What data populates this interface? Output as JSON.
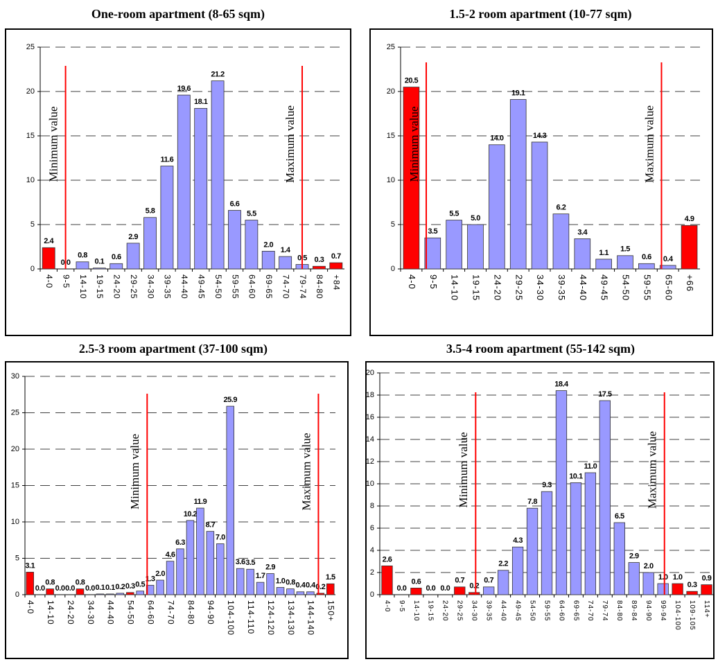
{
  "chart_data": [
    {
      "type": "bar",
      "title": "One-room apartment (8-65 sqm)",
      "categories": [
        "4-0",
        "9-5",
        "14-10",
        "19-15",
        "24-20",
        "29-25",
        "34-30",
        "39-35",
        "44-40",
        "49-45",
        "54-50",
        "59-55",
        "64-60",
        "69-65",
        "74-70",
        "79-74",
        "84-80",
        "+84"
      ],
      "values": [
        2.4,
        0.0,
        0.8,
        0.1,
        0.6,
        2.9,
        5.8,
        11.6,
        19.6,
        18.1,
        21.2,
        6.6,
        5.5,
        2.0,
        1.4,
        0.5,
        0.3,
        0.7
      ],
      "value_labels": [
        "2.4",
        "0.0",
        "0.8",
        "0.1",
        "0.6",
        "2.9",
        "5.8",
        "11.6",
        "19.6",
        "18.1",
        "21.2",
        "6.6",
        "5.5",
        "2.0",
        "1.4",
        "0.5",
        "0.3",
        "0.7"
      ],
      "colors": [
        "#ff0000",
        "#ff0000",
        "#9999ff",
        "#9999ff",
        "#9999ff",
        "#9999ff",
        "#9999ff",
        "#9999ff",
        "#9999ff",
        "#9999ff",
        "#9999ff",
        "#9999ff",
        "#9999ff",
        "#9999ff",
        "#9999ff",
        "#9999ff",
        "#ff0000",
        "#ff0000"
      ],
      "ylim": [
        0,
        25
      ],
      "yticks": [
        0,
        5,
        10,
        15,
        20,
        25
      ],
      "grid": true,
      "annotations": [
        "Minimum value",
        "Maximum value"
      ],
      "annotation_color": "#ff0000"
    },
    {
      "type": "bar",
      "title": "1.5-2 room apartment (10-77 sqm)",
      "categories": [
        "4-0",
        "9-5",
        "14-10",
        "19-15",
        "24-20",
        "29-25",
        "34-30",
        "39-35",
        "44-40",
        "49-45",
        "54-50",
        "59-55",
        "65-60",
        "+66"
      ],
      "values": [
        20.5,
        3.5,
        5.5,
        5.0,
        14.0,
        19.1,
        14.3,
        6.2,
        3.4,
        1.1,
        1.5,
        0.6,
        0.4,
        4.9
      ],
      "value_labels": [
        "20.5",
        "3.5",
        "5.5",
        "5.0",
        "14.0",
        "19.1",
        "14.3",
        "6.2",
        "3.4",
        "1.1",
        "1.5",
        "0.6",
        "0.4",
        "4.9"
      ],
      "colors": [
        "#ff0000",
        "#9999ff",
        "#9999ff",
        "#9999ff",
        "#9999ff",
        "#9999ff",
        "#9999ff",
        "#9999ff",
        "#9999ff",
        "#9999ff",
        "#9999ff",
        "#9999ff",
        "#9999ff",
        "#ff0000"
      ],
      "ylim": [
        0,
        25
      ],
      "yticks": [
        0,
        5,
        10,
        15,
        20,
        25
      ],
      "grid": true,
      "annotations": [
        "Minimum value",
        "Maximum value"
      ],
      "annotation_color": "#ff0000"
    },
    {
      "type": "bar",
      "title": "2.5-3 room apartment (37-100 sqm)",
      "categories": [
        "4-0",
        null,
        "14-10",
        null,
        "24-20",
        null,
        "34-30",
        null,
        "44-40",
        null,
        "54-50",
        null,
        "64-60",
        null,
        "74-70",
        null,
        "84-80",
        null,
        "94-90",
        null,
        "104-100",
        null,
        "114-110",
        null,
        "124-120",
        null,
        "134-130",
        null,
        "144-140",
        null,
        "150+"
      ],
      "values": [
        3.1,
        0.0,
        0.8,
        0.0,
        0.0,
        0.8,
        0.0,
        0.1,
        0.1,
        0.2,
        0.3,
        0.5,
        1.3,
        2.0,
        4.6,
        6.3,
        10.2,
        11.9,
        8.7,
        7.0,
        25.9,
        3.6,
        3.5,
        1.7,
        2.9,
        1.0,
        0.8,
        0.4,
        0.4,
        0.2,
        1.5
      ],
      "value_labels": [
        "3.1",
        "0.0",
        "0.8",
        "0.0",
        "0.0",
        "0.8",
        "0.0",
        "0.1",
        "0.1",
        "0.2",
        "0.3",
        "0.5",
        "1.3",
        "2.0",
        "4.6",
        "6.3",
        "10.2",
        "11.9",
        "8.7",
        "7.0",
        "25.9",
        "3.6",
        "3.5",
        "1.7",
        "2.9",
        "1.0",
        "0.8",
        "0.4",
        "0.4",
        "0.2",
        "1.5"
      ],
      "colors": [
        "#ff0000",
        "#9999ff",
        "#ff0000",
        "#9999ff",
        "#9999ff",
        "#ff0000",
        "#9999ff",
        "#9999ff",
        "#9999ff",
        "#9999ff",
        "#ff0000",
        "#9999ff",
        "#9999ff",
        "#9999ff",
        "#9999ff",
        "#9999ff",
        "#9999ff",
        "#9999ff",
        "#9999ff",
        "#9999ff",
        "#9999ff",
        "#9999ff",
        "#9999ff",
        "#9999ff",
        "#9999ff",
        "#9999ff",
        "#9999ff",
        "#9999ff",
        "#9999ff",
        "#ff0000",
        "#ff0000"
      ],
      "ylim": [
        0,
        30
      ],
      "yticks": [
        0,
        5,
        10,
        15,
        20,
        25,
        30
      ],
      "grid": true,
      "annotations": [
        "Minimum value",
        "Maximum value"
      ],
      "annotation_color": "#ff0000"
    },
    {
      "type": "bar",
      "title": "3.5-4 room apartment (55-142 sqm)",
      "categories": [
        "4-0",
        "9-5",
        "14-10",
        "19-15",
        "24-20",
        "29-25",
        "34-30",
        "39-35",
        "44-40",
        "49-45",
        "54-50",
        "59-55",
        "64-60",
        "69-65",
        "74-70",
        "79-74",
        "84-80",
        "89-84",
        "94-90",
        "99-94",
        "104-100",
        "109-105",
        "114+"
      ],
      "values": [
        2.6,
        0.0,
        0.6,
        0.0,
        0.0,
        0.7,
        0.2,
        0.7,
        2.2,
        4.3,
        7.8,
        9.3,
        18.4,
        10.1,
        11.0,
        17.5,
        6.5,
        2.9,
        2.0,
        1.0,
        1.0,
        0.3,
        0.9
      ],
      "value_labels": [
        "2.6",
        "0.0",
        "0.6",
        "0.0",
        "0.0",
        "0.7",
        "0.2",
        "0.7",
        "2.2",
        "4.3",
        "7.8",
        "9.3",
        "18.4",
        "10.1",
        "11.0",
        "17.5",
        "6.5",
        "2.9",
        "2.0",
        "1.0",
        "1.0",
        "0.3",
        "0.9"
      ],
      "colors": [
        "#ff0000",
        "#9999ff",
        "#ff0000",
        "#9999ff",
        "#9999ff",
        "#ff0000",
        "#ff0000",
        "#9999ff",
        "#9999ff",
        "#9999ff",
        "#9999ff",
        "#9999ff",
        "#9999ff",
        "#9999ff",
        "#9999ff",
        "#9999ff",
        "#9999ff",
        "#9999ff",
        "#9999ff",
        "#9999ff",
        "#ff0000",
        "#ff0000",
        "#ff0000"
      ],
      "ylim": [
        0,
        20
      ],
      "yticks": [
        0,
        2,
        4,
        6,
        8,
        10,
        12,
        14,
        16,
        18,
        20
      ],
      "grid": true,
      "annotations": [
        "Minimum value",
        "Maximum value"
      ],
      "annotation_color": "#ff0000"
    }
  ]
}
